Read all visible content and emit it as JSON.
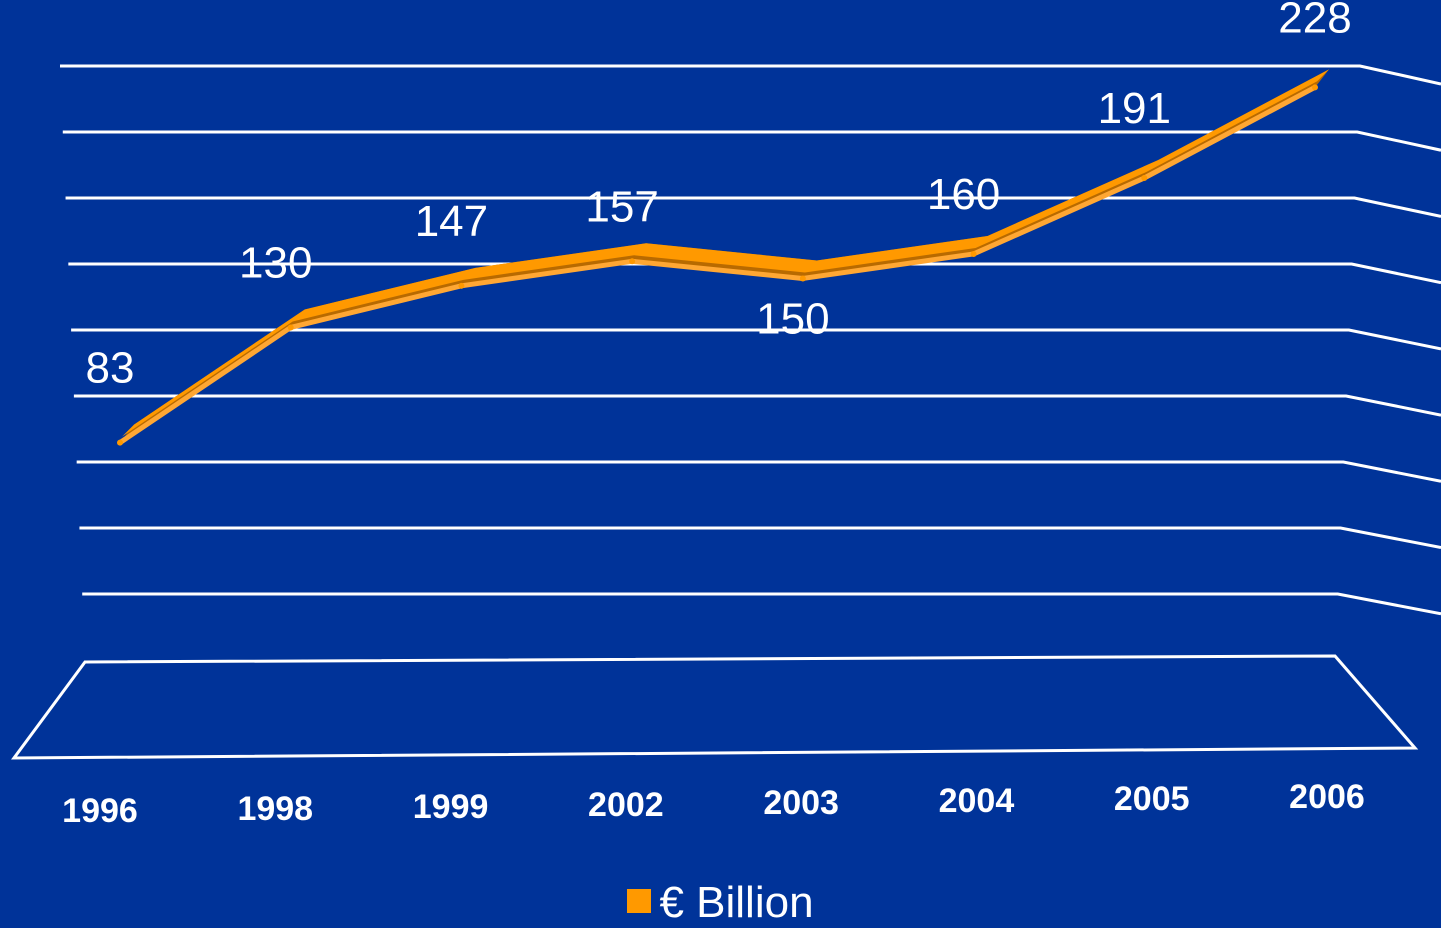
{
  "colors": {
    "background": "#003399",
    "line": "#ff9900",
    "line_top": "#ffa733",
    "line_shadow": "#b86a00",
    "grid": "#ffffff",
    "text": "#ffffff"
  },
  "chart_data": {
    "type": "line",
    "categories": [
      "1996",
      "1998",
      "1999",
      "2002",
      "2003",
      "2004",
      "2005",
      "2006"
    ],
    "series": [
      {
        "name": "€ Billion",
        "values": [
          83,
          130,
          147,
          157,
          150,
          160,
          191,
          228
        ]
      }
    ],
    "data_labels": [
      "83",
      "130",
      "147",
      "157",
      "150",
      "160",
      "191",
      "228"
    ],
    "ylim": [
      0,
      240
    ],
    "grid": true,
    "style": "3d ribbon line",
    "legend_position": "bottom-center"
  },
  "legend": {
    "label": "€ Billion"
  }
}
